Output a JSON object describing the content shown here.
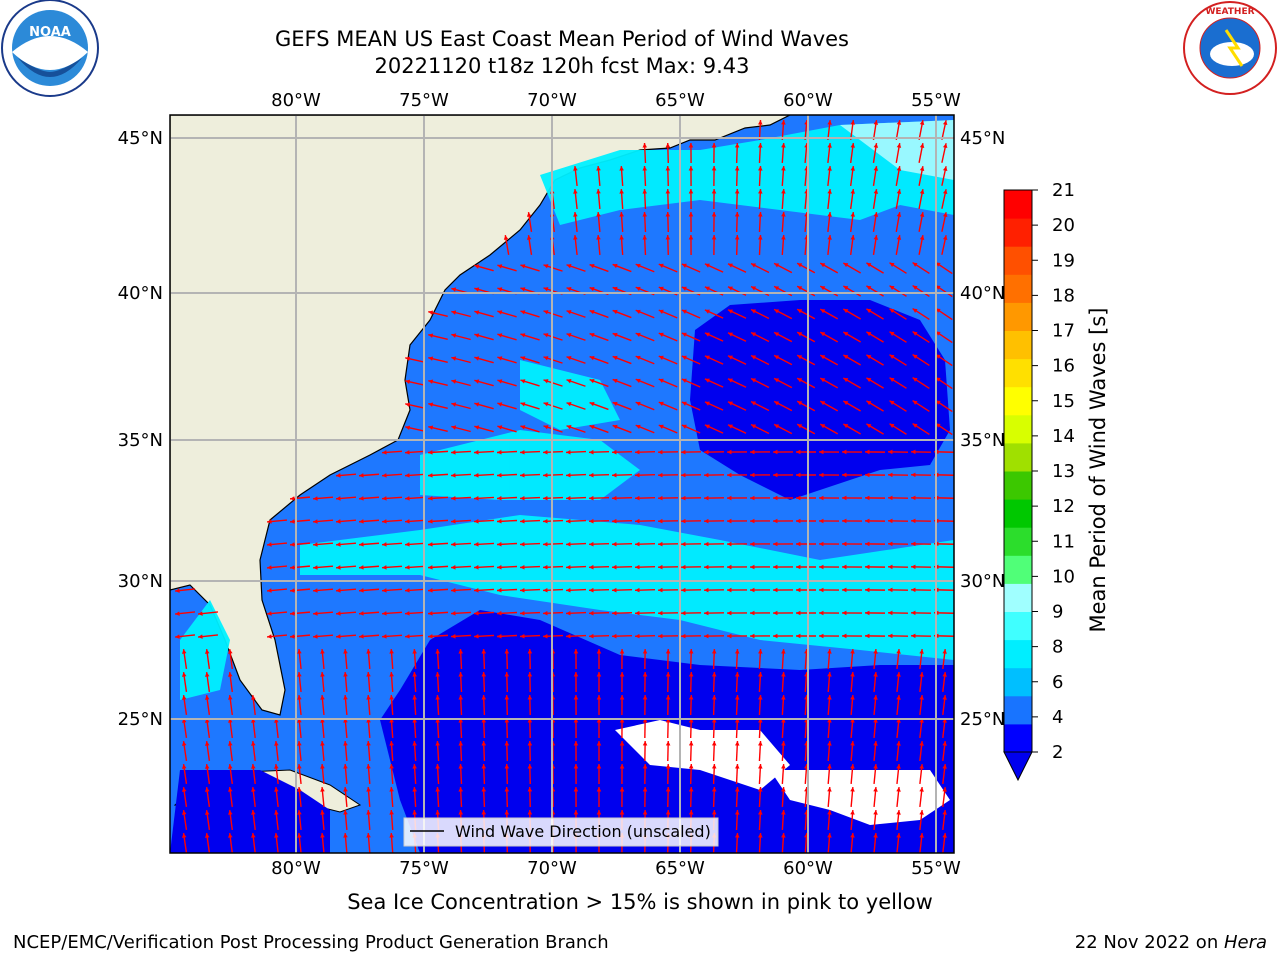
{
  "title_line1": "GEFS MEAN US East Coast Mean Period of Wind Waves",
  "title_line2": "20221120 t18z 120h fcst   Max: 9.43",
  "logos": {
    "left": "NOAA",
    "right": "NATIONAL WEATHER SERVICE"
  },
  "map": {
    "lon_ticks": [
      "80°W",
      "75°W",
      "70°W",
      "65°W",
      "60°W",
      "55°W"
    ],
    "lat_ticks": [
      "45°N",
      "40°N",
      "35°N",
      "30°N",
      "25°N"
    ],
    "legend_label": "Wind Wave Direction (unscaled)"
  },
  "colorbar": {
    "label": "Mean Period of Wind Waves [s]",
    "ticks": [
      "2",
      "4",
      "6",
      "8",
      "9",
      "10",
      "11",
      "12",
      "13",
      "14",
      "15",
      "16",
      "17",
      "18",
      "19",
      "20",
      "21"
    ],
    "colors": [
      "#0000ff",
      "#1874ff",
      "#00bfff",
      "#00eeff",
      "#40ffff",
      "#a0ffff",
      "#50ff78",
      "#2cdd2c",
      "#00c800",
      "#3cc800",
      "#a0e000",
      "#d8ff00",
      "#ffff00",
      "#ffe000",
      "#ffc000",
      "#ff9800",
      "#ff7000",
      "#ff5000",
      "#ff2000",
      "#ff0000"
    ]
  },
  "caption": "Sea Ice Concentration > 15% is shown in pink to yellow",
  "footer": {
    "left": "NCEP/EMC/Verification Post Processing Product Generation Branch",
    "date": "22 Nov 2022 on ",
    "host": "Hera"
  },
  "colors": {
    "land": "#eeeedc",
    "arrow": "#ff0000",
    "grid": "#b4b4b4",
    "low": "#1e78ff",
    "mid": "#00ffff",
    "deep": "#0000ee"
  }
}
